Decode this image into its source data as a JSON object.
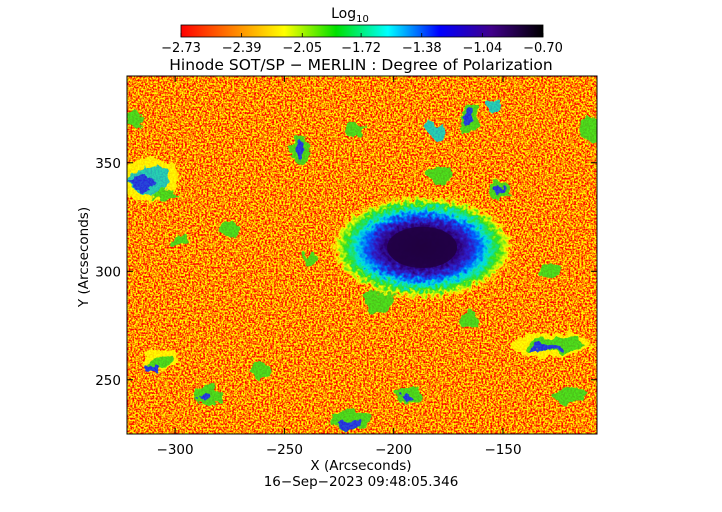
{
  "colorbar": {
    "label_main": "Log",
    "label_sub": "10",
    "tick_labels": [
      "−2.73",
      "−2.39",
      "−2.05",
      "−1.72",
      "−1.38",
      "−1.04",
      "−0.70"
    ],
    "tick_values": [
      -2.73,
      -2.39,
      -2.05,
      -1.72,
      -1.38,
      -1.04,
      -0.7
    ],
    "range": [
      -2.73,
      -0.7
    ],
    "colormap": [
      "#ff0000",
      "#ff8000",
      "#ffff00",
      "#00e000",
      "#00ffff",
      "#0000ff",
      "#40008a",
      "#000000"
    ]
  },
  "title": "Hinode SOT/SP − MERLIN : Degree of Polarization",
  "axes": {
    "xlabel": "X (Arcseconds)",
    "ylabel": "Y (Arcseconds)",
    "xlim": [
      -322,
      -107
    ],
    "ylim": [
      225,
      390
    ],
    "xticks": [
      -300,
      -250,
      -200,
      -150
    ],
    "xtick_labels": [
      "−300",
      "−250",
      "−200",
      "−150"
    ],
    "yticks": [
      250,
      300,
      350
    ],
    "ytick_labels": [
      "250",
      "300",
      "350"
    ]
  },
  "timestamp": "16−Sep−2023 09:48:05.346",
  "features": {
    "sunspot": {
      "x": -187,
      "y": 311,
      "rx_arcsec": 16,
      "ry_arcsec": 9.5
    },
    "background_value": -2.68
  }
}
